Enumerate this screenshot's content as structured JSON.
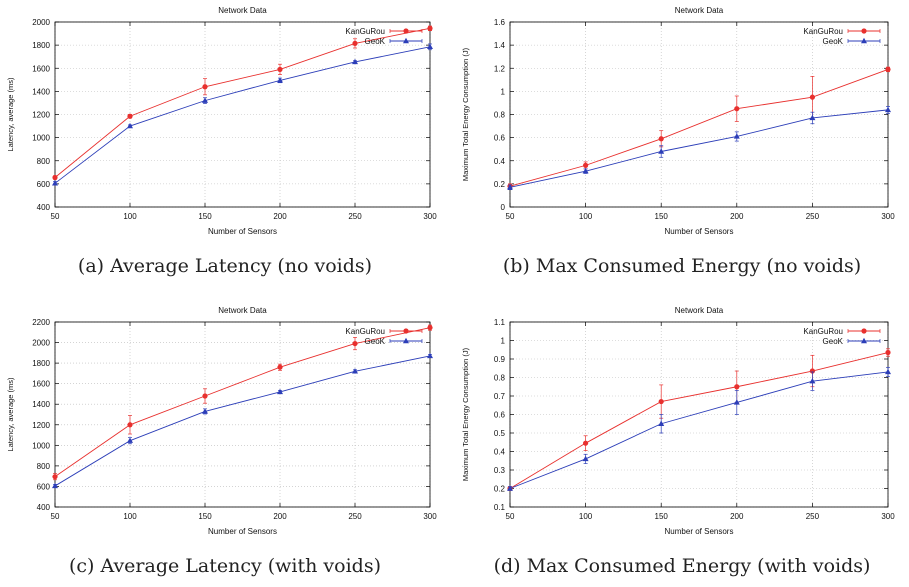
{
  "colors": {
    "kanguro": "#e8302e",
    "geok": "#2c3eb8",
    "grid": "#bbbbbb"
  },
  "chart_data": [
    {
      "id": "a",
      "type": "line",
      "title": "Network Data",
      "xlabel": "Number of Sensors",
      "ylabel": "Latency, average (ms)",
      "xlim": [
        50,
        300
      ],
      "ylim": [
        400,
        2000
      ],
      "xticks": [
        50,
        100,
        150,
        200,
        250,
        300
      ],
      "yticks": [
        400,
        600,
        800,
        1000,
        1200,
        1400,
        1600,
        1800,
        2000
      ],
      "ytick_labels": [
        "400",
        "600",
        "800",
        "1000",
        "1200",
        "1400",
        "1600",
        "1800",
        "2000"
      ],
      "x": [
        50,
        100,
        150,
        200,
        250,
        300
      ],
      "legend": "top-right",
      "series": [
        {
          "name": "KanGuRou",
          "marker": "circle",
          "values": [
            655,
            1185,
            1440,
            1590,
            1815,
            1945
          ],
          "err": [
            15,
            15,
            70,
            45,
            40,
            20
          ]
        },
        {
          "name": "GeoK",
          "marker": "triangle",
          "values": [
            605,
            1100,
            1320,
            1495,
            1655,
            1785
          ],
          "err": [
            15,
            10,
            25,
            20,
            10,
            25
          ]
        }
      ],
      "caption": "(a) Average Latency (no voids)"
    },
    {
      "id": "b",
      "type": "line",
      "title": "Network Data",
      "xlabel": "Number of Sensors",
      "ylabel": "Maximum Total Energy Consumption (J)",
      "xlim": [
        50,
        300
      ],
      "ylim": [
        0,
        1.6
      ],
      "xticks": [
        50,
        100,
        150,
        200,
        250,
        300
      ],
      "yticks": [
        0,
        0.2,
        0.4,
        0.6,
        0.8,
        1.0,
        1.2,
        1.4,
        1.6
      ],
      "ytick_labels": [
        "0",
        "0.2",
        "0.4",
        "0.6",
        "0.8",
        "1",
        "1.2",
        "1.4",
        "1.6"
      ],
      "x": [
        50,
        100,
        150,
        200,
        250,
        300
      ],
      "legend": "top-right",
      "series": [
        {
          "name": "KanGuRou",
          "marker": "circle",
          "values": [
            0.18,
            0.36,
            0.59,
            0.85,
            0.95,
            1.19
          ],
          "err": [
            0.02,
            0.03,
            0.07,
            0.11,
            0.18,
            0.02
          ]
        },
        {
          "name": "GeoK",
          "marker": "triangle",
          "values": [
            0.17,
            0.31,
            0.48,
            0.61,
            0.77,
            0.84
          ],
          "err": [
            0.02,
            0.02,
            0.05,
            0.04,
            0.05,
            0.03
          ]
        }
      ],
      "caption": "(b) Max Consumed Energy (no voids)"
    },
    {
      "id": "c",
      "type": "line",
      "title": "Network Data",
      "xlabel": "Number of Sensors",
      "ylabel": "Latency, average (ms)",
      "xlim": [
        50,
        300
      ],
      "ylim": [
        400,
        2200
      ],
      "xticks": [
        50,
        100,
        150,
        200,
        250,
        300
      ],
      "yticks": [
        400,
        600,
        800,
        1000,
        1200,
        1400,
        1600,
        1800,
        2000,
        2200
      ],
      "ytick_labels": [
        "400",
        "600",
        "800",
        "1000",
        "1200",
        "1400",
        "1600",
        "1800",
        "2000",
        "2200"
      ],
      "x": [
        50,
        100,
        150,
        200,
        250,
        300
      ],
      "legend": "top-right",
      "series": [
        {
          "name": "KanGuRou",
          "marker": "circle",
          "values": [
            695,
            1200,
            1480,
            1760,
            1990,
            2145
          ],
          "err": [
            30,
            90,
            70,
            30,
            60,
            25
          ]
        },
        {
          "name": "GeoK",
          "marker": "triangle",
          "values": [
            605,
            1045,
            1330,
            1520,
            1720,
            1870
          ],
          "err": [
            15,
            30,
            25,
            15,
            15,
            15
          ]
        }
      ],
      "caption": "(c) Average Latency (with voids)"
    },
    {
      "id": "d",
      "type": "line",
      "title": "Network Data",
      "xlabel": "Number of Sensors",
      "ylabel": "Maximum Total Energy Consumption (J)",
      "xlim": [
        50,
        300
      ],
      "ylim": [
        0.1,
        1.1
      ],
      "xticks": [
        50,
        100,
        150,
        200,
        250,
        300
      ],
      "yticks": [
        0.1,
        0.2,
        0.3,
        0.4,
        0.5,
        0.6,
        0.7,
        0.8,
        0.9,
        1.0,
        1.1
      ],
      "ytick_labels": [
        "0.1",
        "0.2",
        "0.3",
        "0.4",
        "0.5",
        "0.6",
        "0.7",
        "0.8",
        "0.9",
        "1",
        "1.1"
      ],
      "x": [
        50,
        100,
        150,
        200,
        250,
        300
      ],
      "legend": "top-right",
      "series": [
        {
          "name": "KanGuRou",
          "marker": "circle",
          "values": [
            0.2,
            0.445,
            0.67,
            0.75,
            0.835,
            0.935
          ],
          "err": [
            0.01,
            0.04,
            0.09,
            0.085,
            0.085,
            0.02
          ]
        },
        {
          "name": "GeoK",
          "marker": "triangle",
          "values": [
            0.2,
            0.36,
            0.55,
            0.665,
            0.78,
            0.83
          ],
          "err": [
            0.01,
            0.025,
            0.05,
            0.065,
            0.05,
            0.025
          ]
        }
      ],
      "caption": "(d) Max Consumed Energy (with voids)"
    }
  ]
}
